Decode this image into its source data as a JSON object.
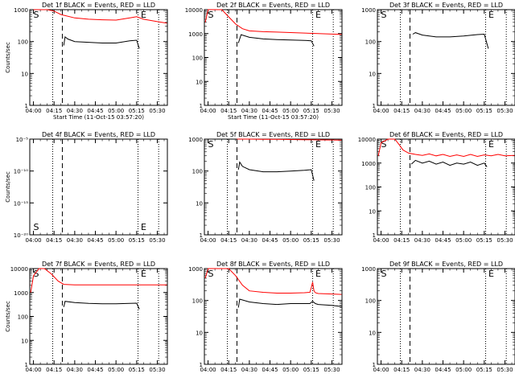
{
  "chart_data": [
    {
      "type": "line",
      "title": "Det 1f BLACK = Events, RED = LLD",
      "xlabel": "Start Time (11-Oct-15 03:57:20)",
      "ylabel": "Counts/sec",
      "yscale": "log",
      "ylim": [
        1,
        1000
      ],
      "yticks": [
        "1",
        "10",
        "100",
        "1000"
      ],
      "xticks": [
        "04:00",
        "04:15",
        "04:30",
        "04:45",
        "05:00",
        "05:15",
        "05:30"
      ],
      "xrange": [
        "03:57:20",
        "05:37:20"
      ],
      "markers": {
        "S": "04:00",
        "E": "05:18"
      },
      "vlines": [
        {
          "t": "04:14",
          "style": "dotted"
        },
        {
          "t": "04:21",
          "style": "dashed"
        },
        {
          "t": "05:16",
          "style": "dotted"
        },
        {
          "t": "05:31",
          "style": "dotted"
        }
      ],
      "series": [
        {
          "color": "#000000",
          "x": [
            "04:22",
            "04:23",
            "04:25",
            "04:30",
            "04:40",
            "04:50",
            "05:00",
            "05:10",
            "05:15",
            "05:17"
          ],
          "y": [
            75,
            140,
            120,
            100,
            95,
            90,
            90,
            105,
            110,
            60
          ]
        },
        {
          "color": "#ff0000",
          "x": [
            "04:00",
            "04:04",
            "04:10",
            "04:15",
            "04:20",
            "04:30",
            "04:40",
            "04:50",
            "05:00",
            "05:10",
            "05:15",
            "05:20",
            "05:30",
            "05:37"
          ],
          "y": [
            1000,
            1000,
            1000,
            900,
            700,
            550,
            500,
            480,
            470,
            550,
            600,
            500,
            420,
            380
          ]
        }
      ]
    },
    {
      "type": "line",
      "title": "Det 2f BLACK = Events, RED = LLD",
      "xlabel": "Start Time (11-Oct-15 03:57:20)",
      "ylabel": "",
      "yscale": "log",
      "ylim": [
        1,
        10000
      ],
      "yticks": [
        "1",
        "10",
        "100",
        "1000",
        "10000"
      ],
      "xticks": [
        "04:00",
        "04:15",
        "04:30",
        "04:45",
        "05:00",
        "05:15",
        "05:30"
      ],
      "xrange": [
        "03:57:20",
        "05:37:20"
      ],
      "markers": {
        "S": "04:00",
        "E": "05:18"
      },
      "vlines": [
        {
          "t": "04:14",
          "style": "dotted"
        },
        {
          "t": "04:21",
          "style": "dashed"
        },
        {
          "t": "05:16",
          "style": "dotted"
        },
        {
          "t": "05:31",
          "style": "dotted"
        }
      ],
      "series": [
        {
          "color": "#000000",
          "x": [
            "04:22",
            "04:24",
            "04:30",
            "04:40",
            "04:50",
            "05:00",
            "05:10",
            "05:15",
            "05:17"
          ],
          "y": [
            400,
            900,
            700,
            600,
            560,
            540,
            520,
            500,
            300
          ]
        },
        {
          "color": "#ff0000",
          "x": [
            "03:58",
            "04:00",
            "04:04",
            "04:10",
            "04:15",
            "04:20",
            "04:25",
            "04:30",
            "04:40",
            "04:50",
            "05:00",
            "05:10",
            "05:20",
            "05:30",
            "05:37"
          ],
          "y": [
            3000,
            10000,
            10000,
            10000,
            5000,
            2500,
            1600,
            1300,
            1200,
            1150,
            1100,
            1050,
            1000,
            950,
            920
          ]
        }
      ]
    },
    {
      "type": "line",
      "title": "Det 3f BLACK = Events, RED = LLD",
      "xlabel": "",
      "ylabel": "",
      "yscale": "log",
      "ylim": [
        1,
        1000
      ],
      "yticks": [
        "1",
        "10",
        "100",
        "1000"
      ],
      "xticks": [
        "04:00",
        "04:15",
        "04:30",
        "04:45",
        "05:00",
        "05:15",
        "05:30"
      ],
      "xrange": [
        "03:57:20",
        "05:37:20"
      ],
      "markers": {
        "S": "04:00",
        "E": "05:18"
      },
      "vlines": [
        {
          "t": "04:14",
          "style": "dotted"
        },
        {
          "t": "04:21",
          "style": "dashed"
        },
        {
          "t": "05:16",
          "style": "dotted"
        },
        {
          "t": "05:31",
          "style": "dotted"
        }
      ],
      "series": [
        {
          "color": "#000000",
          "x": [
            "04:23",
            "04:25",
            "04:30",
            "04:40",
            "04:50",
            "05:00",
            "05:10",
            "05:15",
            "05:18"
          ],
          "y": [
            170,
            190,
            160,
            140,
            140,
            150,
            165,
            170,
            60
          ]
        }
      ]
    },
    {
      "type": "line",
      "title": "Det 4f BLACK = Events, RED = LLD",
      "xlabel": "",
      "ylabel": "Counts/sec",
      "yscale": "log",
      "ylim": [
        1e-20,
        1e-05
      ],
      "yticks": [
        "10⁻²⁰",
        "10⁻¹⁵",
        "10⁻¹⁰",
        "10⁻⁵"
      ],
      "xticks": [
        "04:00",
        "04:15",
        "04:30",
        "04:45",
        "05:00",
        "05:15",
        "05:30"
      ],
      "xrange": [
        "03:57:20",
        "05:37:20"
      ],
      "markers": {
        "S": "04:00",
        "E": "05:18"
      },
      "vlines": [
        {
          "t": "04:14",
          "style": "dotted"
        },
        {
          "t": "04:21",
          "style": "dashed"
        },
        {
          "t": "05:16",
          "style": "dotted"
        },
        {
          "t": "05:31",
          "style": "dotted"
        }
      ],
      "series": []
    },
    {
      "type": "line",
      "title": "Det 5f BLACK = Events, RED = LLD",
      "xlabel": "",
      "ylabel": "",
      "yscale": "log",
      "ylim": [
        1,
        1000
      ],
      "yticks": [
        "1",
        "10",
        "100",
        "1000"
      ],
      "xticks": [
        "04:00",
        "04:15",
        "04:30",
        "04:45",
        "05:00",
        "05:15",
        "05:30"
      ],
      "xrange": [
        "03:57:20",
        "05:37:20"
      ],
      "markers": {
        "S": "04:00",
        "E": "05:18"
      },
      "vlines": [
        {
          "t": "04:14",
          "style": "dotted"
        },
        {
          "t": "04:21",
          "style": "dashed"
        },
        {
          "t": "05:16",
          "style": "dotted"
        },
        {
          "t": "05:31",
          "style": "dotted"
        }
      ],
      "series": [
        {
          "color": "#000000",
          "x": [
            "04:22",
            "04:23",
            "04:25",
            "04:30",
            "04:40",
            "04:50",
            "05:00",
            "05:10",
            "05:15",
            "05:17"
          ],
          "y": [
            110,
            190,
            140,
            110,
            95,
            95,
            100,
            105,
            110,
            50
          ]
        },
        {
          "color": "#ff0000",
          "x": [
            "04:21",
            "04:30",
            "04:40",
            "04:50",
            "05:00",
            "05:10",
            "05:20",
            "05:30",
            "05:37"
          ],
          "y": [
            1000,
            1000,
            990,
            980,
            970,
            960,
            950,
            940,
            930
          ]
        }
      ]
    },
    {
      "type": "line",
      "title": "Det 6f BLACK = Events, RED = LLD",
      "xlabel": "",
      "ylabel": "",
      "yscale": "log",
      "ylim": [
        1,
        10000
      ],
      "yticks": [
        "1",
        "10",
        "100",
        "1000",
        "10000"
      ],
      "xticks": [
        "04:00",
        "04:15",
        "04:30",
        "04:45",
        "05:00",
        "05:15",
        "05:30"
      ],
      "xrange": [
        "03:57:20",
        "05:37:20"
      ],
      "markers": {
        "S": "04:00",
        "E": "05:18"
      },
      "vlines": [
        {
          "t": "04:14",
          "style": "dotted"
        },
        {
          "t": "04:21",
          "style": "dashed"
        },
        {
          "t": "05:16",
          "style": "dotted"
        },
        {
          "t": "05:31",
          "style": "dotted"
        }
      ],
      "series": [
        {
          "color": "#000000",
          "x": [
            "04:22",
            "04:25",
            "04:30",
            "04:35",
            "04:40",
            "04:45",
            "04:50",
            "04:55",
            "05:00",
            "05:05",
            "05:10",
            "05:15",
            "05:17"
          ],
          "y": [
            900,
            1300,
            1000,
            1200,
            900,
            1100,
            800,
            1000,
            900,
            1100,
            800,
            1000,
            700
          ]
        },
        {
          "color": "#ff0000",
          "x": [
            "03:58",
            "04:00",
            "04:05",
            "04:10",
            "04:13",
            "04:16",
            "04:20",
            "04:25",
            "04:30",
            "04:35",
            "04:40",
            "04:45",
            "04:50",
            "04:55",
            "05:00",
            "05:05",
            "05:10",
            "05:15",
            "05:20",
            "05:25",
            "05:30",
            "05:37"
          ],
          "y": [
            2000,
            7000,
            10000,
            10000,
            6000,
            3500,
            2600,
            2300,
            2100,
            2400,
            2000,
            2300,
            1900,
            2200,
            1900,
            2300,
            1900,
            2200,
            2000,
            2300,
            2000,
            2100
          ]
        }
      ]
    },
    {
      "type": "line",
      "title": "Det 7f BLACK = Events, RED = LLD",
      "xlabel": "",
      "ylabel": "Counts/sec",
      "yscale": "log",
      "ylim": [
        1,
        10000
      ],
      "yticks": [
        "1",
        "10",
        "100",
        "1000",
        "10000"
      ],
      "xticks": [
        "04:00",
        "04:15",
        "04:30",
        "04:45",
        "05:00",
        "05:15",
        "05:30"
      ],
      "xrange": [
        "03:57:20",
        "05:37:20"
      ],
      "markers": {
        "S": "04:00",
        "E": "05:18"
      },
      "vlines": [
        {
          "t": "04:14",
          "style": "dotted"
        },
        {
          "t": "04:21",
          "style": "dashed"
        },
        {
          "t": "05:16",
          "style": "dotted"
        },
        {
          "t": "05:31",
          "style": "dotted"
        }
      ],
      "series": [
        {
          "color": "#000000",
          "x": [
            "04:22",
            "04:23",
            "04:30",
            "04:40",
            "04:50",
            "05:00",
            "05:10",
            "05:15",
            "05:17"
          ],
          "y": [
            250,
            430,
            380,
            350,
            340,
            340,
            350,
            360,
            200
          ]
        },
        {
          "color": "#ff0000",
          "x": [
            "03:58",
            "04:00",
            "04:04",
            "04:08",
            "04:13",
            "04:18",
            "04:22",
            "04:30",
            "04:45",
            "05:00",
            "05:15",
            "05:30",
            "05:37"
          ],
          "y": [
            1000,
            5000,
            10000,
            10000,
            6000,
            3000,
            2200,
            2100,
            2100,
            2100,
            2100,
            2100,
            2100
          ]
        }
      ]
    },
    {
      "type": "line",
      "title": "Det 8f BLACK = Events, RED = LLD",
      "xlabel": "",
      "ylabel": "",
      "yscale": "log",
      "ylim": [
        1,
        1000
      ],
      "yticks": [
        "1",
        "10",
        "100",
        "1000"
      ],
      "xticks": [
        "04:00",
        "04:15",
        "04:30",
        "04:45",
        "05:00",
        "05:15",
        "05:30"
      ],
      "xrange": [
        "03:57:20",
        "05:37:20"
      ],
      "markers": {
        "S": "04:00",
        "E": "05:18"
      },
      "vlines": [
        {
          "t": "04:14",
          "style": "dotted"
        },
        {
          "t": "04:21",
          "style": "dashed"
        },
        {
          "t": "05:16",
          "style": "dotted"
        },
        {
          "t": "05:31",
          "style": "dotted"
        }
      ],
      "series": [
        {
          "color": "#000000",
          "x": [
            "04:22",
            "04:23",
            "04:30",
            "04:40",
            "04:50",
            "05:00",
            "05:10",
            "05:14",
            "05:16",
            "05:18",
            "05:20",
            "05:30",
            "05:37"
          ],
          "y": [
            60,
            110,
            90,
            80,
            75,
            80,
            80,
            80,
            95,
            80,
            75,
            70,
            65
          ]
        },
        {
          "color": "#ff0000",
          "x": [
            "03:58",
            "04:00",
            "04:05",
            "04:10",
            "04:15",
            "04:20",
            "04:25",
            "04:30",
            "04:40",
            "04:50",
            "05:00",
            "05:10",
            "05:14",
            "05:15",
            "05:16",
            "05:17",
            "05:18",
            "05:20",
            "05:30",
            "05:37"
          ],
          "y": [
            500,
            1000,
            1000,
            1000,
            1000,
            600,
            300,
            200,
            180,
            170,
            170,
            175,
            180,
            250,
            380,
            200,
            175,
            165,
            160,
            155
          ]
        }
      ]
    },
    {
      "type": "line",
      "title": "Det 9f BLACK = Events, RED = LLD",
      "xlabel": "",
      "ylabel": "",
      "yscale": "log",
      "ylim": [
        1,
        1000
      ],
      "yticks": [
        "1",
        "10",
        "100",
        "1000"
      ],
      "xticks": [
        "04:00",
        "04:15",
        "04:30",
        "04:45",
        "05:00",
        "05:15",
        "05:30"
      ],
      "xrange": [
        "03:57:20",
        "05:37:20"
      ],
      "markers": {
        "S": "04:00",
        "E": "05:18"
      },
      "vlines": [
        {
          "t": "04:14",
          "style": "dotted"
        },
        {
          "t": "04:21",
          "style": "dashed"
        },
        {
          "t": "05:16",
          "style": "dotted"
        },
        {
          "t": "05:31",
          "style": "dotted"
        }
      ],
      "series": []
    }
  ]
}
